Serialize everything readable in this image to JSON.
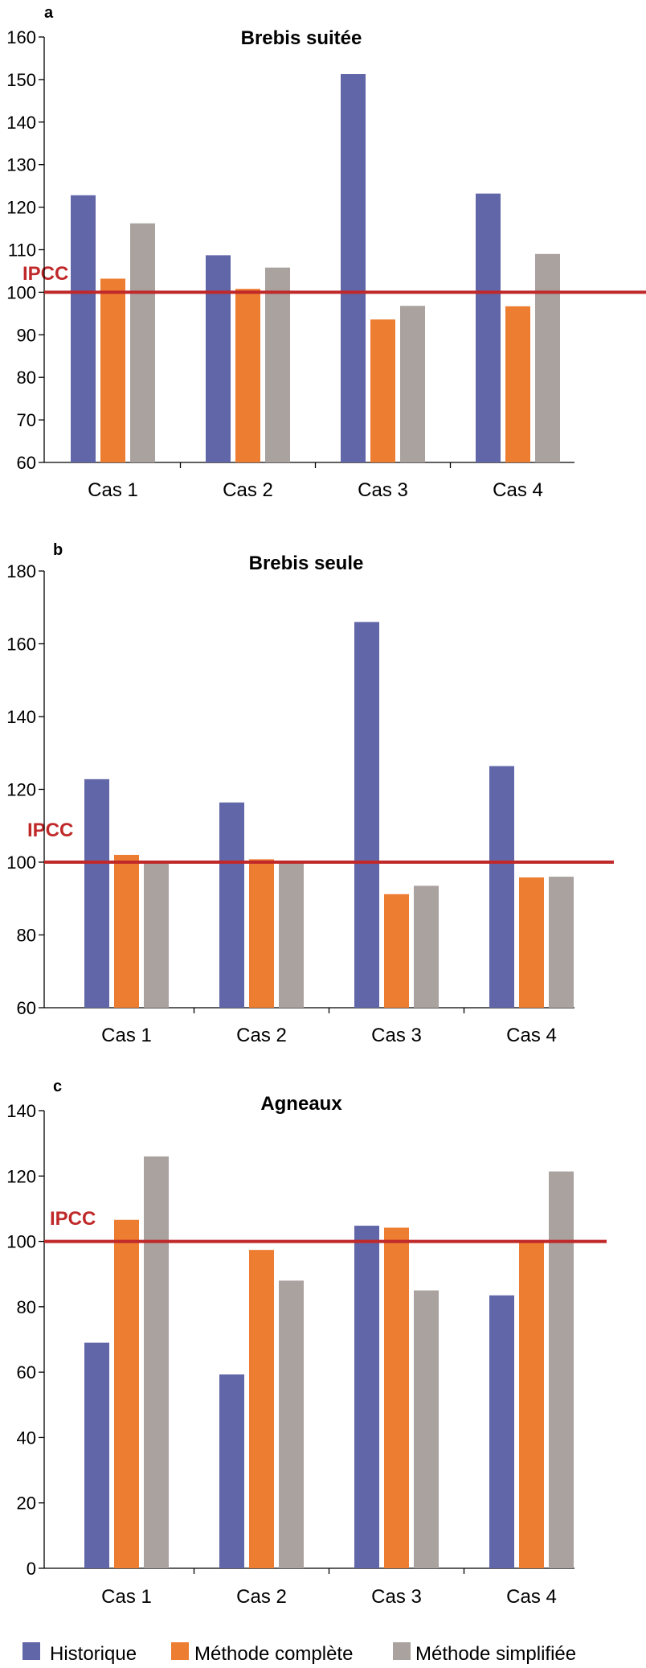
{
  "colors": {
    "historique": "#6166a8",
    "complete": "#ed7d31",
    "simplifiee": "#a9a29f",
    "reference": "#c0292a"
  },
  "legend": [
    {
      "label": "Historique",
      "color": "#6166a8"
    },
    {
      "label": "Méthode complète",
      "color": "#ed7d31"
    },
    {
      "label": "Méthode simplifiée",
      "color": "#a9a29f"
    }
  ],
  "chart_data": [
    {
      "type": "bar",
      "panel": "a",
      "title": "Brebis suitée",
      "categories": [
        "Cas 1",
        "Cas 2",
        "Cas 3",
        "Cas 4"
      ],
      "ylim": [
        60,
        160
      ],
      "yticks": [
        60,
        70,
        80,
        90,
        100,
        110,
        120,
        130,
        140,
        150,
        160
      ],
      "reference": {
        "label": "IPCC",
        "value": 100
      },
      "series": [
        {
          "name": "Historique",
          "values": [
            122.8,
            108.7,
            151.3,
            123.2
          ]
        },
        {
          "name": "Méthode complète",
          "values": [
            103.2,
            100.8,
            93.6,
            96.7
          ]
        },
        {
          "name": "Méthode simplifiée",
          "values": [
            116.2,
            105.8,
            96.8,
            109.0
          ]
        }
      ]
    },
    {
      "type": "bar",
      "panel": "b",
      "title": "Brebis seule",
      "categories": [
        "Cas 1",
        "Cas 2",
        "Cas 3",
        "Cas 4"
      ],
      "ylim": [
        60,
        180
      ],
      "yticks": [
        60,
        80,
        100,
        120,
        140,
        160,
        180
      ],
      "reference": {
        "label": "IPCC",
        "value": 100
      },
      "series": [
        {
          "name": "Historique",
          "values": [
            122.8,
            116.4,
            166.0,
            126.4
          ]
        },
        {
          "name": "Méthode complète",
          "values": [
            102.0,
            100.8,
            91.2,
            95.8
          ]
        },
        {
          "name": "Méthode simplifiée",
          "values": [
            100.0,
            100.0,
            93.5,
            96.0
          ]
        }
      ]
    },
    {
      "type": "bar",
      "panel": "c",
      "title": "Agneaux",
      "categories": [
        "Cas 1",
        "Cas 2",
        "Cas 3",
        "Cas 4"
      ],
      "ylim": [
        0,
        140
      ],
      "yticks": [
        0,
        20,
        40,
        60,
        80,
        100,
        120,
        140
      ],
      "reference": {
        "label": "IPCC",
        "value": 100
      },
      "series": [
        {
          "name": "Historique",
          "values": [
            69.0,
            59.3,
            104.8,
            83.5
          ]
        },
        {
          "name": "Méthode complète",
          "values": [
            106.6,
            97.4,
            104.2,
            99.8
          ]
        },
        {
          "name": "Méthode simplifiée",
          "values": [
            126.0,
            88.0,
            85.0,
            121.4
          ]
        }
      ]
    }
  ]
}
